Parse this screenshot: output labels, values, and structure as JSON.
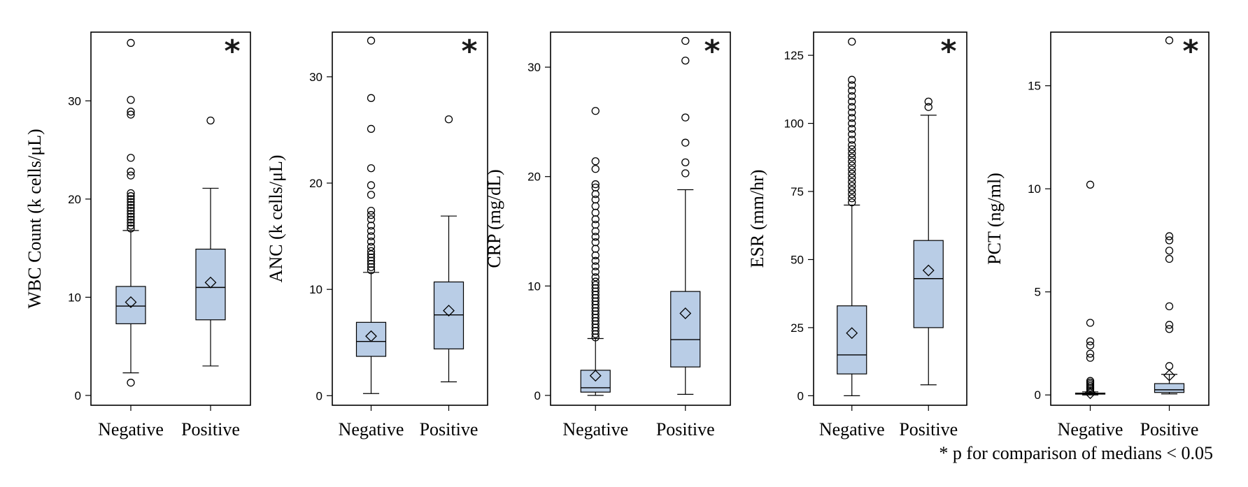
{
  "footnote": "* p for comparison of medians < 0.05",
  "colors": {
    "box_fill": "#b9cde6",
    "stroke": "#000000"
  },
  "chart_data": [
    {
      "type": "box",
      "ylabel": "WBC Count (k cells/μL)",
      "categories": [
        "Negative",
        "Positive"
      ],
      "ylim": [
        -1,
        37
      ],
      "yticks": [
        0,
        10,
        20,
        30
      ],
      "significant": true,
      "star_label": "*",
      "series": [
        {
          "category": "Negative",
          "whisker_low": 2.3,
          "q1": 7.3,
          "median": 9.1,
          "q3": 11.1,
          "whisker_high": 16.8,
          "mean": 9.5,
          "outliers": [
            1.3,
            17.0,
            17.3,
            17.6,
            17.9,
            18.2,
            18.5,
            18.8,
            19.1,
            19.4,
            19.7,
            20.0,
            20.3,
            20.6,
            22.4,
            22.8,
            24.2,
            28.6,
            28.9,
            30.1,
            35.9
          ]
        },
        {
          "category": "Positive",
          "whisker_low": 3.0,
          "q1": 7.7,
          "median": 11.0,
          "q3": 14.9,
          "whisker_high": 21.1,
          "mean": 11.5,
          "outliers": [
            28.0
          ]
        }
      ]
    },
    {
      "type": "box",
      "ylabel": "ANC (k cells/μL)",
      "categories": [
        "Negative",
        "Positive"
      ],
      "ylim": [
        -0.9,
        34.2
      ],
      "yticks": [
        0,
        10,
        20,
        30
      ],
      "significant": true,
      "star_label": "*",
      "series": [
        {
          "category": "Negative",
          "whisker_low": 0.2,
          "q1": 3.7,
          "median": 5.1,
          "q3": 6.9,
          "whisker_high": 11.6,
          "mean": 5.6,
          "outliers": [
            11.8,
            12.1,
            12.4,
            12.7,
            13.0,
            13.3,
            13.6,
            14.0,
            14.5,
            15.0,
            15.5,
            16.0,
            16.6,
            17.0,
            17.4,
            18.9,
            19.8,
            21.4,
            25.1,
            28.0,
            33.4
          ]
        },
        {
          "category": "Positive",
          "whisker_low": 1.3,
          "q1": 4.4,
          "median": 7.6,
          "q3": 10.7,
          "whisker_high": 16.9,
          "mean": 8.0,
          "outliers": [
            26.0
          ]
        }
      ]
    },
    {
      "type": "box",
      "ylabel": "CRP (mg/dL)",
      "categories": [
        "Negative",
        "Positive"
      ],
      "ylim": [
        -0.9,
        33.2
      ],
      "yticks": [
        0,
        10,
        20,
        30
      ],
      "significant": true,
      "star_label": "*",
      "series": [
        {
          "category": "Negative",
          "whisker_low": 0.0,
          "q1": 0.3,
          "median": 0.7,
          "q3": 2.3,
          "whisker_high": 5.2,
          "mean": 1.8,
          "outliers": [
            5.3,
            5.6,
            5.9,
            6.2,
            6.5,
            6.8,
            7.1,
            7.4,
            7.7,
            8.0,
            8.3,
            8.6,
            8.9,
            9.2,
            9.5,
            9.8,
            10.1,
            10.4,
            10.8,
            11.3,
            11.8,
            12.3,
            12.8,
            13.4,
            14.0,
            14.5,
            15.0,
            15.6,
            16.1,
            16.7,
            17.3,
            17.9,
            18.4,
            19.0,
            19.3,
            20.7,
            21.4,
            26.0
          ]
        },
        {
          "category": "Positive",
          "whisker_low": 0.1,
          "q1": 2.6,
          "median": 5.1,
          "q3": 9.5,
          "whisker_high": 18.8,
          "mean": 7.5,
          "outliers": [
            20.3,
            21.3,
            23.1,
            25.4,
            30.6,
            32.4
          ]
        }
      ]
    },
    {
      "type": "box",
      "ylabel": "ESR (mm/hr)",
      "categories": [
        "Negative",
        "Positive"
      ],
      "ylim": [
        -3.5,
        133.5
      ],
      "yticks": [
        0,
        25,
        50,
        75,
        100,
        125
      ],
      "significant": true,
      "star_label": "*",
      "series": [
        {
          "category": "Negative",
          "whisker_low": 0,
          "q1": 8,
          "median": 15,
          "q3": 33,
          "whisker_high": 70,
          "mean": 23,
          "outliers": [
            71,
            72.5,
            74,
            75.5,
            77,
            78.5,
            80,
            81.5,
            83,
            84.5,
            86,
            87.5,
            89,
            90.5,
            92,
            94,
            96,
            98,
            100,
            102,
            104,
            106,
            108,
            110,
            112,
            114,
            116,
            130
          ]
        },
        {
          "category": "Positive",
          "whisker_low": 4,
          "q1": 25,
          "median": 43,
          "q3": 57,
          "whisker_high": 103,
          "mean": 46,
          "outliers": [
            106,
            108
          ]
        }
      ]
    },
    {
      "type": "box",
      "ylabel": "PCT (ng/ml)",
      "categories": [
        "Negative",
        "Positive"
      ],
      "ylim": [
        -0.5,
        17.6
      ],
      "yticks": [
        0,
        5,
        10,
        15
      ],
      "significant": true,
      "star_label": "*",
      "series": [
        {
          "category": "Negative",
          "whisker_low": 0.0,
          "q1": 0.04,
          "median": 0.06,
          "q3": 0.09,
          "whisker_high": 0.15,
          "mean": 0.08,
          "outliers": [
            0.2,
            0.28,
            0.36,
            0.44,
            0.52,
            0.6,
            0.68,
            1.8,
            2.0,
            2.4,
            2.6,
            3.5,
            10.2
          ]
        },
        {
          "category": "Positive",
          "whisker_low": 0.05,
          "q1": 0.12,
          "median": 0.25,
          "q3": 0.55,
          "whisker_high": 1.0,
          "mean": 0.95,
          "outliers": [
            1.4,
            3.2,
            3.4,
            4.3,
            6.6,
            7.0,
            7.5,
            7.7,
            17.2
          ]
        }
      ]
    }
  ]
}
